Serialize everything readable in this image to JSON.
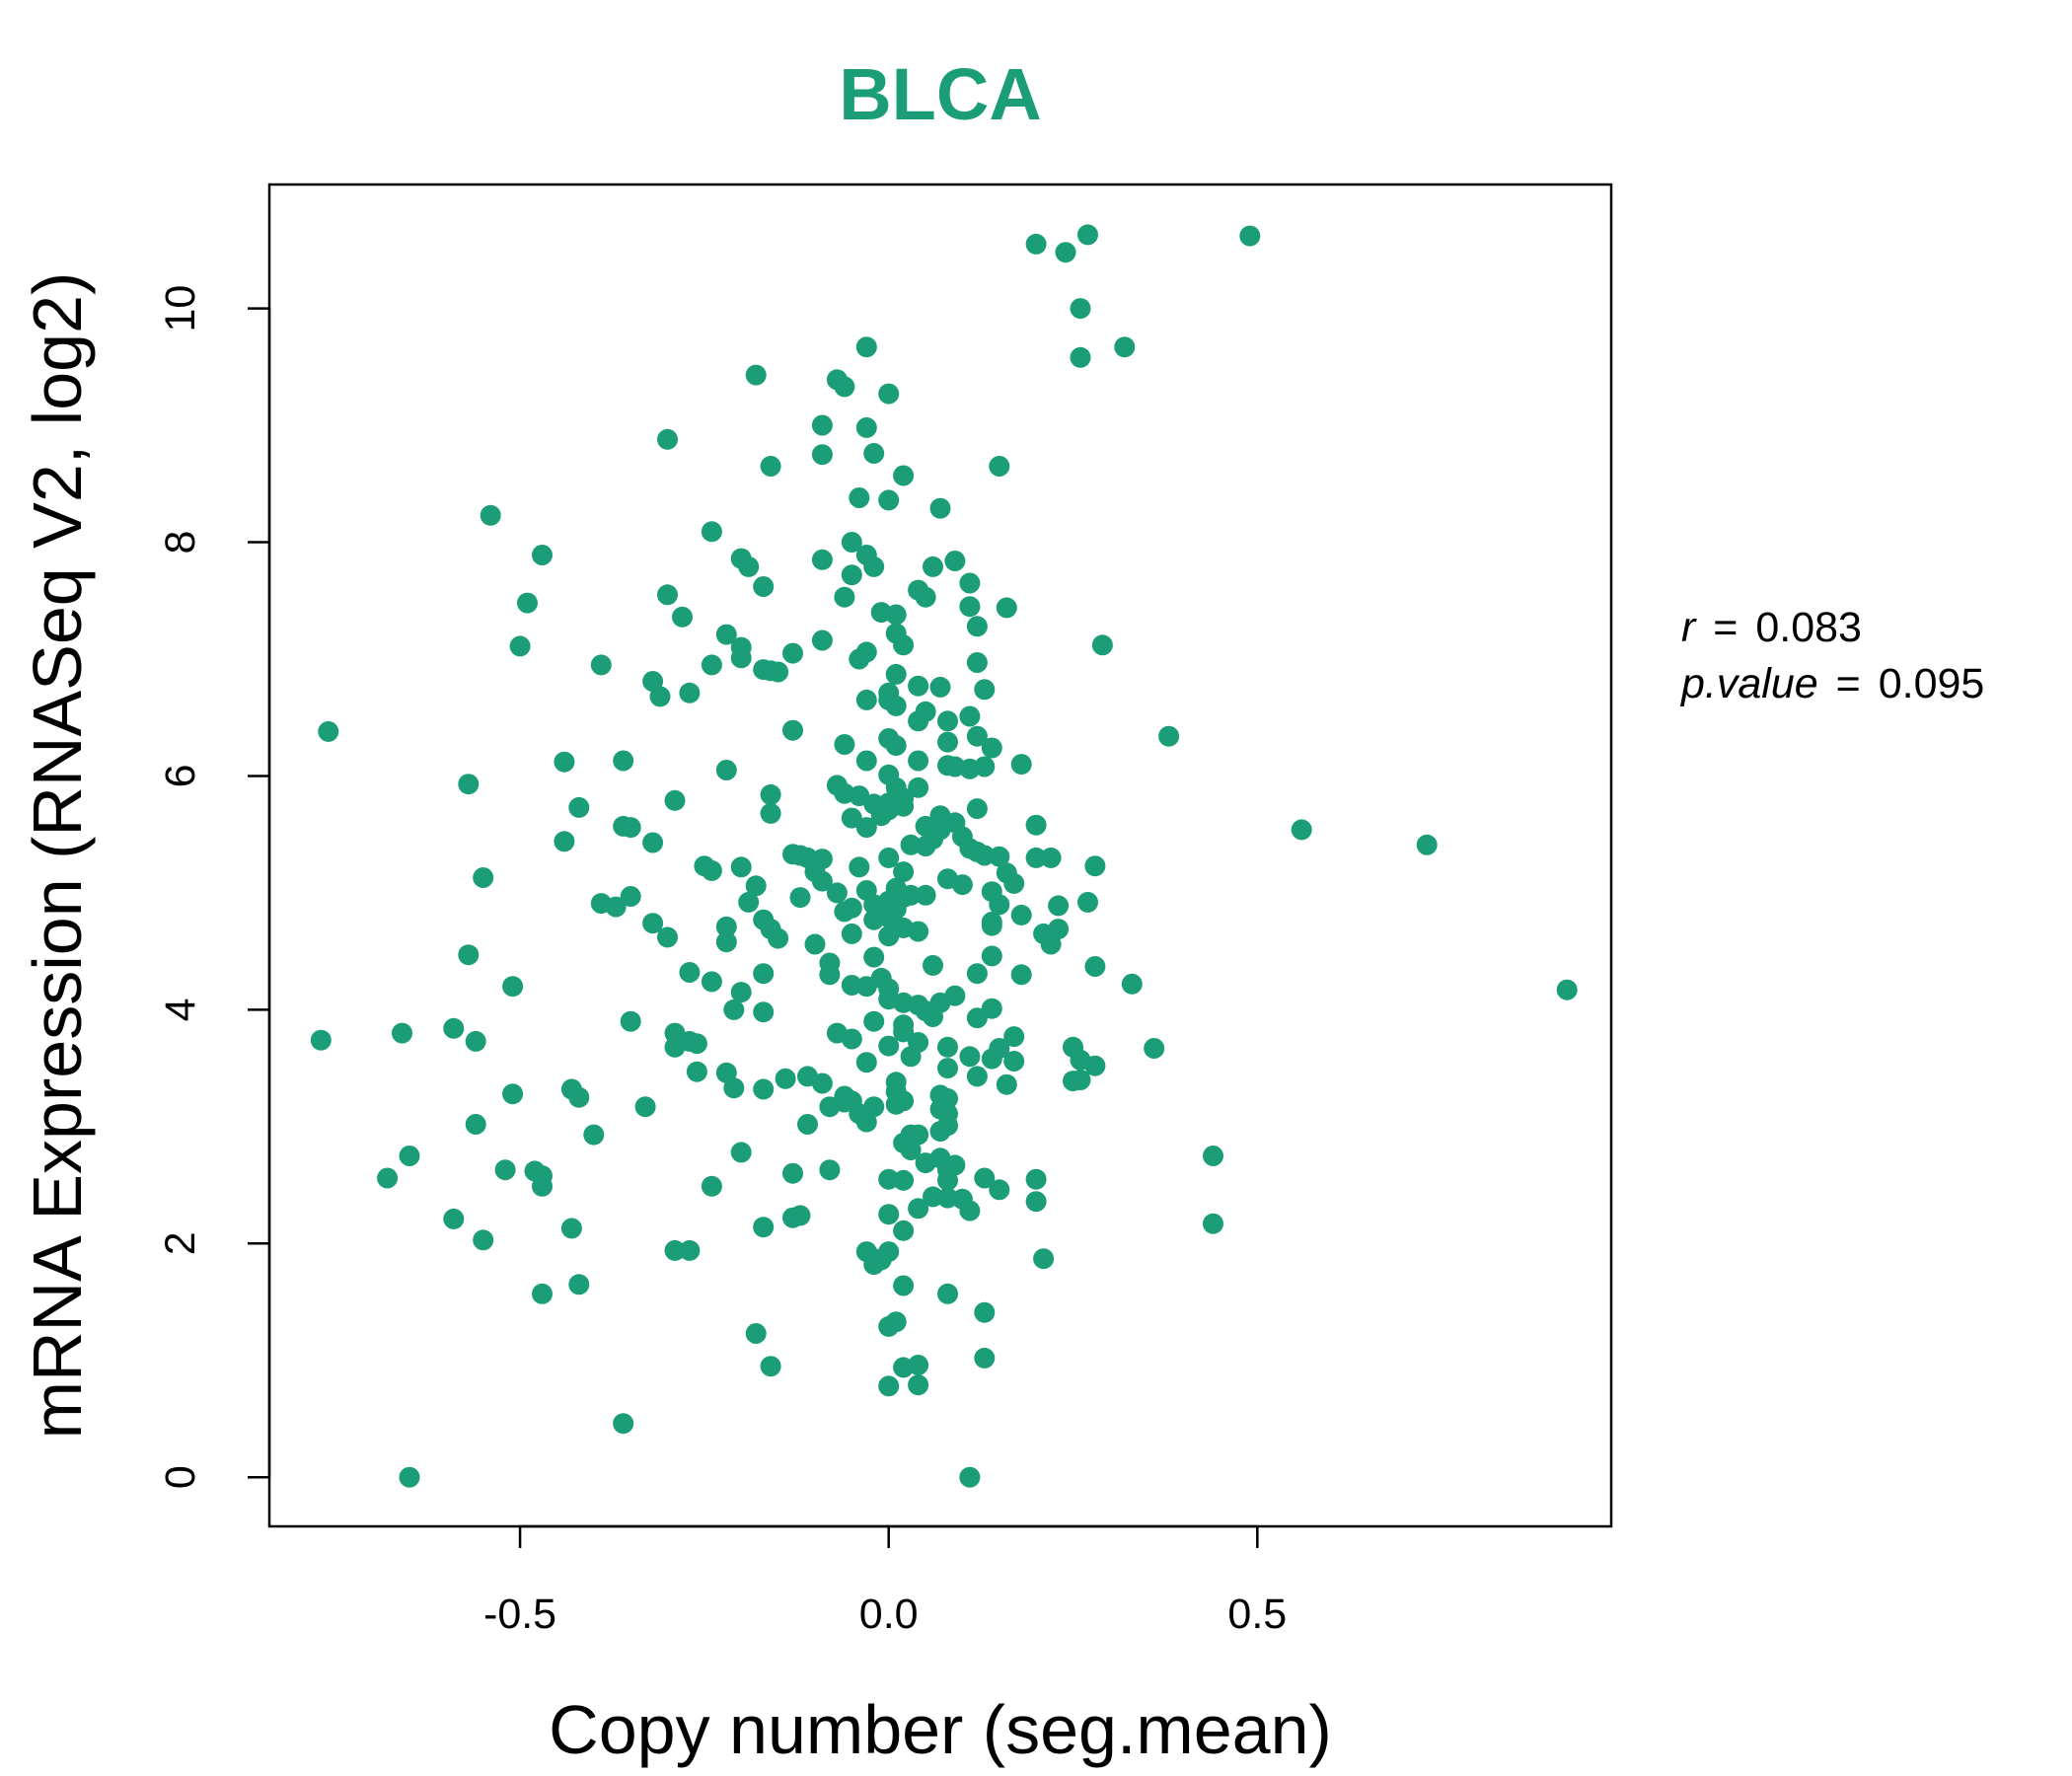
{
  "colors": {
    "point": "#1b9e77",
    "title": "#1b9e77",
    "axis": "#000000"
  },
  "chart_data": {
    "type": "scatter",
    "title": "BLCA",
    "xlabel": "Copy number (seg.mean)",
    "ylabel": "mRNA Expression (RNASeq V2, log2)",
    "xlim": [
      -0.84,
      0.98
    ],
    "ylim": [
      -0.42,
      11.06
    ],
    "xticks": [
      -0.5,
      0.0,
      0.5
    ],
    "xtick_labels": [
      "-0.5",
      "0.0",
      "0.5"
    ],
    "yticks": [
      0,
      2,
      4,
      6,
      8,
      10
    ],
    "ytick_labels": [
      "0",
      "2",
      "4",
      "6",
      "8",
      "10"
    ],
    "grid": false,
    "annotations": {
      "r_label": "r",
      "r_value": "0.083",
      "p_label": "p.value",
      "p_value": "0.095",
      "equals": "="
    },
    "points": [
      [
        0.2,
        10.55
      ],
      [
        0.24,
        10.48
      ],
      [
        0.27,
        10.63
      ],
      [
        0.49,
        10.62
      ],
      [
        0.26,
        10.0
      ],
      [
        0.26,
        9.58
      ],
      [
        0.32,
        9.67
      ],
      [
        -0.03,
        9.67
      ],
      [
        -0.18,
        9.43
      ],
      [
        -0.07,
        9.39
      ],
      [
        -0.06,
        9.33
      ],
      [
        0.0,
        9.27
      ],
      [
        -0.09,
        9.0
      ],
      [
        -0.03,
        8.98
      ],
      [
        -0.3,
        8.88
      ],
      [
        -0.02,
        8.76
      ],
      [
        -0.09,
        8.75
      ],
      [
        -0.16,
        8.65
      ],
      [
        0.15,
        8.65
      ],
      [
        0.02,
        8.57
      ],
      [
        -0.04,
        8.38
      ],
      [
        0.0,
        8.36
      ],
      [
        0.07,
        8.29
      ],
      [
        -0.54,
        8.23
      ],
      [
        -0.24,
        8.09
      ],
      [
        -0.05,
        8.0
      ],
      [
        -0.47,
        7.89
      ],
      [
        -0.03,
        7.89
      ],
      [
        -0.2,
        7.86
      ],
      [
        -0.09,
        7.85
      ],
      [
        0.09,
        7.84
      ],
      [
        -0.19,
        7.79
      ],
      [
        -0.02,
        7.79
      ],
      [
        0.06,
        7.79
      ],
      [
        -0.05,
        7.72
      ],
      [
        0.11,
        7.65
      ],
      [
        -0.17,
        7.62
      ],
      [
        0.04,
        7.59
      ],
      [
        -0.3,
        7.55
      ],
      [
        0.05,
        7.53
      ],
      [
        -0.06,
        7.53
      ],
      [
        -0.49,
        7.48
      ],
      [
        0.11,
        7.45
      ],
      [
        0.16,
        7.44
      ],
      [
        -0.01,
        7.4
      ],
      [
        0.01,
        7.38
      ],
      [
        -0.28,
        7.36
      ],
      [
        0.12,
        7.28
      ],
      [
        -0.22,
        7.21
      ],
      [
        0.01,
        7.22
      ],
      [
        -0.09,
        7.16
      ],
      [
        0.29,
        7.12
      ],
      [
        -0.5,
        7.11
      ],
      [
        -0.2,
        7.1
      ],
      [
        0.02,
        7.12
      ],
      [
        -0.13,
        7.05
      ],
      [
        -0.2,
        7.01
      ],
      [
        -0.04,
        7.0
      ],
      [
        -0.03,
        7.06
      ],
      [
        -0.39,
        6.95
      ],
      [
        -0.24,
        6.95
      ],
      [
        0.12,
        6.97
      ],
      [
        -0.17,
        6.91
      ],
      [
        -0.16,
        6.9
      ],
      [
        -0.15,
        6.89
      ],
      [
        0.01,
        6.87
      ],
      [
        -0.32,
        6.81
      ],
      [
        0.04,
        6.77
      ],
      [
        0.07,
        6.76
      ],
      [
        0.0,
        6.71
      ],
      [
        -0.31,
        6.68
      ],
      [
        -0.27,
        6.71
      ],
      [
        0.13,
        6.74
      ],
      [
        -0.03,
        6.65
      ],
      [
        0.0,
        6.65
      ],
      [
        0.01,
        6.6
      ],
      [
        0.05,
        6.55
      ],
      [
        0.11,
        6.51
      ],
      [
        0.08,
        6.47
      ],
      [
        0.04,
        6.47
      ],
      [
        -0.13,
        6.39
      ],
      [
        0.0,
        6.32
      ],
      [
        0.12,
        6.34
      ],
      [
        -0.76,
        6.38
      ],
      [
        0.38,
        6.34
      ],
      [
        0.08,
        6.29
      ],
      [
        -0.06,
        6.27
      ],
      [
        0.01,
        6.26
      ],
      [
        0.14,
        6.24
      ],
      [
        -0.36,
        6.13
      ],
      [
        -0.44,
        6.12
      ],
      [
        -0.03,
        6.13
      ],
      [
        0.04,
        6.13
      ],
      [
        0.08,
        6.09
      ],
      [
        0.09,
        6.08
      ],
      [
        0.11,
        6.06
      ],
      [
        0.13,
        6.08
      ],
      [
        0.18,
        6.1
      ],
      [
        -0.22,
        6.05
      ],
      [
        0.0,
        6.01
      ],
      [
        -0.57,
        5.93
      ],
      [
        -0.07,
        5.92
      ],
      [
        0.01,
        5.9
      ],
      [
        0.04,
        5.9
      ],
      [
        -0.06,
        5.85
      ],
      [
        -0.16,
        5.84
      ],
      [
        -0.04,
        5.83
      ],
      [
        0.02,
        5.81
      ],
      [
        0.0,
        5.77
      ],
      [
        -0.29,
        5.79
      ],
      [
        -0.02,
        5.76
      ],
      [
        0.02,
        5.74
      ],
      [
        -0.42,
        5.73
      ],
      [
        0.0,
        5.71
      ],
      [
        0.12,
        5.72
      ],
      [
        -0.16,
        5.68
      ],
      [
        -0.01,
        5.66
      ],
      [
        -0.05,
        5.64
      ],
      [
        0.07,
        5.66
      ],
      [
        0.09,
        5.6
      ],
      [
        0.2,
        5.58
      ],
      [
        -0.36,
        5.57
      ],
      [
        -0.35,
        5.56
      ],
      [
        -0.03,
        5.56
      ],
      [
        0.05,
        5.57
      ],
      [
        0.07,
        5.54
      ],
      [
        0.56,
        5.54
      ],
      [
        0.06,
        5.46
      ],
      [
        0.1,
        5.48
      ],
      [
        -0.44,
        5.44
      ],
      [
        -0.32,
        5.43
      ],
      [
        0.03,
        5.41
      ],
      [
        0.05,
        5.4
      ],
      [
        0.11,
        5.38
      ],
      [
        0.73,
        5.41
      ],
      [
        -0.13,
        5.33
      ],
      [
        0.12,
        5.35
      ],
      [
        -0.11,
        5.3
      ],
      [
        -0.09,
        5.29
      ],
      [
        0.13,
        5.32
      ],
      [
        0.15,
        5.31
      ],
      [
        0.2,
        5.3
      ],
      [
        0.22,
        5.3
      ],
      [
        -0.12,
        5.32
      ],
      [
        0.0,
        5.3
      ],
      [
        -0.25,
        5.23
      ],
      [
        0.28,
        5.23
      ],
      [
        -0.24,
        5.19
      ],
      [
        -0.2,
        5.22
      ],
      [
        -0.04,
        5.22
      ],
      [
        -0.1,
        5.18
      ],
      [
        0.02,
        5.18
      ],
      [
        0.16,
        5.17
      ],
      [
        -0.55,
        5.13
      ],
      [
        -0.09,
        5.1
      ],
      [
        0.08,
        5.12
      ],
      [
        0.1,
        5.07
      ],
      [
        0.17,
        5.08
      ],
      [
        -0.18,
        5.06
      ],
      [
        0.01,
        5.04
      ],
      [
        -0.03,
        5.02
      ],
      [
        -0.07,
        5.0
      ],
      [
        0.14,
        5.01
      ],
      [
        0.03,
        4.98
      ],
      [
        -0.35,
        4.97
      ],
      [
        0.02,
        4.96
      ],
      [
        0.05,
        4.98
      ],
      [
        -0.12,
        4.96
      ],
      [
        0.0,
        4.93
      ],
      [
        -0.39,
        4.91
      ],
      [
        -0.19,
        4.92
      ],
      [
        0.27,
        4.92
      ],
      [
        -0.02,
        4.9
      ],
      [
        0.15,
        4.9
      ],
      [
        -0.37,
        4.88
      ],
      [
        -0.05,
        4.87
      ],
      [
        0.01,
        4.86
      ],
      [
        -0.06,
        4.84
      ],
      [
        0.23,
        4.89
      ],
      [
        0.18,
        4.81
      ],
      [
        0.0,
        4.79
      ],
      [
        -0.17,
        4.77
      ],
      [
        -0.02,
        4.77
      ],
      [
        0.14,
        4.75
      ],
      [
        -0.32,
        4.74
      ],
      [
        -0.22,
        4.71
      ],
      [
        -0.16,
        4.69
      ],
      [
        0.02,
        4.7
      ],
      [
        0.14,
        4.72
      ],
      [
        0.23,
        4.69
      ],
      [
        0.04,
        4.67
      ],
      [
        -0.05,
        4.65
      ],
      [
        0.21,
        4.65
      ],
      [
        -0.3,
        4.62
      ],
      [
        -0.15,
        4.61
      ],
      [
        0.0,
        4.63
      ],
      [
        -0.22,
        4.58
      ],
      [
        -0.1,
        4.56
      ],
      [
        0.22,
        4.56
      ],
      [
        -0.57,
        4.47
      ],
      [
        0.14,
        4.46
      ],
      [
        -0.02,
        4.45
      ],
      [
        -0.08,
        4.4
      ],
      [
        0.06,
        4.38
      ],
      [
        0.28,
        4.37
      ],
      [
        -0.27,
        4.32
      ],
      [
        -0.08,
        4.3
      ],
      [
        -0.17,
        4.31
      ],
      [
        0.12,
        4.31
      ],
      [
        0.18,
        4.3
      ],
      [
        -0.01,
        4.27
      ],
      [
        -0.24,
        4.24
      ],
      [
        0.33,
        4.22
      ],
      [
        -0.51,
        4.2
      ],
      [
        -0.05,
        4.21
      ],
      [
        -0.03,
        4.2
      ],
      [
        0.0,
        4.18
      ],
      [
        0.92,
        4.17
      ],
      [
        -0.2,
        4.15
      ],
      [
        0.09,
        4.12
      ],
      [
        0.0,
        4.09
      ],
      [
        0.02,
        4.06
      ],
      [
        0.04,
        4.04
      ],
      [
        0.07,
        4.06
      ],
      [
        -0.21,
        4.0
      ],
      [
        0.14,
        4.01
      ],
      [
        -0.17,
        3.98
      ],
      [
        0.05,
        3.99
      ],
      [
        0.12,
        3.93
      ],
      [
        0.06,
        3.94
      ],
      [
        -0.35,
        3.9
      ],
      [
        -0.02,
        3.9
      ],
      [
        0.02,
        3.87
      ],
      [
        -0.59,
        3.84
      ],
      [
        -0.66,
        3.8
      ],
      [
        -0.29,
        3.8
      ],
      [
        -0.07,
        3.8
      ],
      [
        0.02,
        3.81
      ],
      [
        0.17,
        3.77
      ],
      [
        -0.77,
        3.74
      ],
      [
        -0.56,
        3.73
      ],
      [
        -0.05,
        3.75
      ],
      [
        0.04,
        3.72
      ],
      [
        -0.27,
        3.73
      ],
      [
        -0.26,
        3.71
      ],
      [
        -0.29,
        3.68
      ],
      [
        0.0,
        3.69
      ],
      [
        0.08,
        3.68
      ],
      [
        0.15,
        3.67
      ],
      [
        0.25,
        3.68
      ],
      [
        0.36,
        3.67
      ],
      [
        0.03,
        3.6
      ],
      [
        0.11,
        3.6
      ],
      [
        0.14,
        3.58
      ],
      [
        -0.03,
        3.55
      ],
      [
        0.17,
        3.56
      ],
      [
        0.26,
        3.57
      ],
      [
        0.28,
        3.52
      ],
      [
        0.08,
        3.5
      ],
      [
        -0.26,
        3.47
      ],
      [
        -0.22,
        3.46
      ],
      [
        0.12,
        3.43
      ],
      [
        0.26,
        3.4
      ],
      [
        -0.14,
        3.41
      ],
      [
        -0.11,
        3.43
      ],
      [
        0.25,
        3.39
      ],
      [
        0.01,
        3.38
      ],
      [
        -0.09,
        3.37
      ],
      [
        0.16,
        3.36
      ],
      [
        -0.21,
        3.33
      ],
      [
        -0.17,
        3.32
      ],
      [
        -0.43,
        3.32
      ],
      [
        0.01,
        3.3
      ],
      [
        0.07,
        3.27
      ],
      [
        -0.51,
        3.28
      ],
      [
        -0.42,
        3.25
      ],
      [
        -0.06,
        3.26
      ],
      [
        0.08,
        3.24
      ],
      [
        -0.06,
        3.21
      ],
      [
        -0.05,
        3.22
      ],
      [
        0.02,
        3.22
      ],
      [
        -0.33,
        3.17
      ],
      [
        -0.08,
        3.17
      ],
      [
        0.01,
        3.19
      ],
      [
        0.07,
        3.15
      ],
      [
        -0.02,
        3.17
      ],
      [
        -0.04,
        3.11
      ],
      [
        0.08,
        3.11
      ],
      [
        -0.03,
        3.04
      ],
      [
        -0.11,
        3.02
      ],
      [
        -0.56,
        3.02
      ],
      [
        0.08,
        3.01
      ],
      [
        0.07,
        2.96
      ],
      [
        0.03,
        2.93
      ],
      [
        -0.4,
        2.93
      ],
      [
        0.04,
        2.93
      ],
      [
        0.02,
        2.86
      ],
      [
        -0.2,
        2.78
      ],
      [
        0.03,
        2.8
      ],
      [
        0.44,
        2.75
      ],
      [
        -0.65,
        2.75
      ],
      [
        0.07,
        2.73
      ],
      [
        0.05,
        2.69
      ],
      [
        0.09,
        2.67
      ],
      [
        0.08,
        2.63
      ],
      [
        -0.08,
        2.63
      ],
      [
        -0.52,
        2.63
      ],
      [
        -0.48,
        2.62
      ],
      [
        -0.47,
        2.58
      ],
      [
        -0.13,
        2.6
      ],
      [
        -0.68,
        2.56
      ],
      [
        0.0,
        2.55
      ],
      [
        0.02,
        2.54
      ],
      [
        0.08,
        2.54
      ],
      [
        0.13,
        2.56
      ],
      [
        0.2,
        2.55
      ],
      [
        -0.47,
        2.49
      ],
      [
        -0.24,
        2.49
      ],
      [
        0.15,
        2.46
      ],
      [
        0.06,
        2.4
      ],
      [
        0.08,
        2.39
      ],
      [
        0.1,
        2.38
      ],
      [
        0.2,
        2.36
      ],
      [
        0.04,
        2.3
      ],
      [
        0.11,
        2.28
      ],
      [
        0.0,
        2.25
      ],
      [
        -0.12,
        2.24
      ],
      [
        -0.13,
        2.22
      ],
      [
        -0.59,
        2.21
      ],
      [
        0.44,
        2.17
      ],
      [
        -0.17,
        2.14
      ],
      [
        -0.43,
        2.13
      ],
      [
        0.02,
        2.11
      ],
      [
        -0.55,
        2.03
      ],
      [
        -0.29,
        1.94
      ],
      [
        -0.27,
        1.94
      ],
      [
        -0.03,
        1.93
      ],
      [
        0.0,
        1.93
      ],
      [
        -0.02,
        1.87
      ],
      [
        -0.01,
        1.86
      ],
      [
        0.21,
        1.87
      ],
      [
        -0.02,
        1.82
      ],
      [
        0.02,
        1.64
      ],
      [
        -0.42,
        1.65
      ],
      [
        -0.47,
        1.57
      ],
      [
        0.08,
        1.57
      ],
      [
        0.13,
        1.41
      ],
      [
        0.01,
        1.33
      ],
      [
        0.0,
        1.29
      ],
      [
        -0.18,
        1.23
      ],
      [
        0.13,
        1.02
      ],
      [
        -0.16,
        0.95
      ],
      [
        0.02,
        0.94
      ],
      [
        0.04,
        0.96
      ],
      [
        0.0,
        0.78
      ],
      [
        0.04,
        0.79
      ],
      [
        -0.36,
        0.46
      ],
      [
        -0.65,
        0.0
      ],
      [
        0.11,
        0.0
      ]
    ]
  }
}
